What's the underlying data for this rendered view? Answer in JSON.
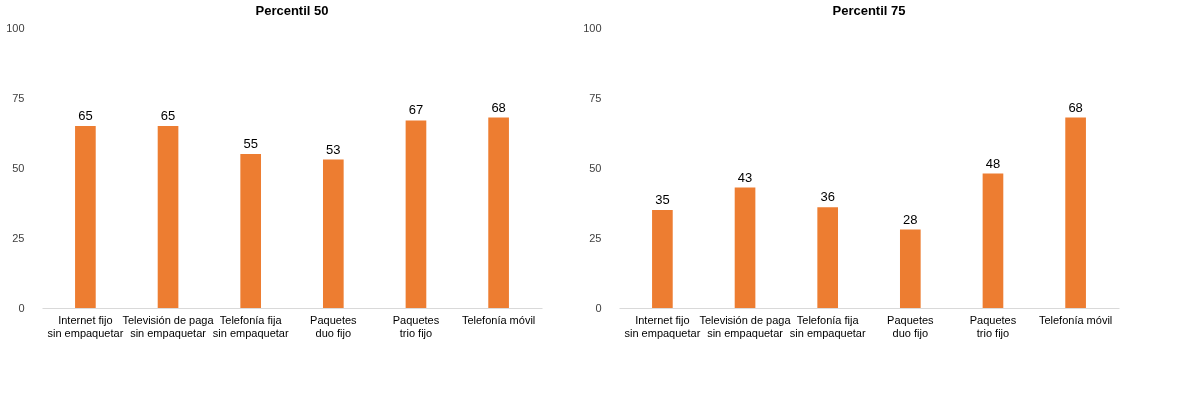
{
  "chart_data": [
    {
      "type": "bar",
      "title": "Percentil 50",
      "categories": [
        "Internet fijo sin empaquetar",
        "Televisión de paga sin empaquetar",
        "Telefonía fija sin empaquetar",
        "Paquetes duo fijo",
        "Paquetes trio fijo",
        "Telefonía móvil"
      ],
      "values": [
        65,
        65,
        55,
        53,
        67,
        68
      ],
      "color": "#ed7d31",
      "ylim": [
        0,
        100
      ],
      "yticks": [
        0,
        25,
        50,
        75,
        100
      ],
      "data_labels": true,
      "grid": false
    },
    {
      "type": "bar",
      "title": "Percentil 75",
      "categories": [
        "Internet fijo sin empaquetar",
        "Televisión de paga sin empaquetar",
        "Telefonía fija sin empaquetar",
        "Paquetes duo fijo",
        "Paquetes trio fijo",
        "Telefonía móvil"
      ],
      "values": [
        35,
        43,
        36,
        28,
        48,
        68
      ],
      "color": "#ed7d31",
      "ylim": [
        0,
        100
      ],
      "yticks": [
        0,
        25,
        50,
        75,
        100
      ],
      "data_labels": true,
      "grid": false
    }
  ]
}
